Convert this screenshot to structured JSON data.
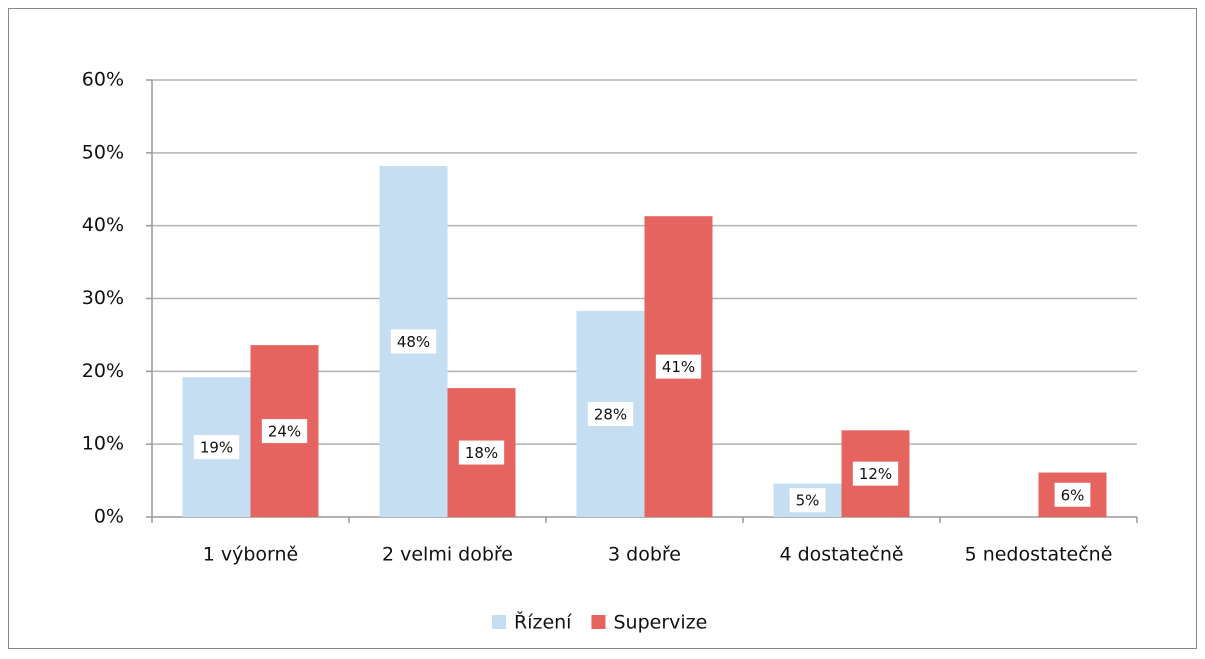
{
  "chart_data": {
    "type": "bar",
    "categories": [
      "1  výborně",
      "2  velmi dobře",
      "3  dobře",
      "4  dostatečně",
      "5  nedostatečně"
    ],
    "series": [
      {
        "name": "Řízení",
        "color": "#c6def2",
        "values": [
          19.2,
          48.2,
          28.3,
          4.6,
          null
        ],
        "value_labels": [
          "19%",
          "48%",
          "28%",
          "5%",
          null
        ]
      },
      {
        "name": "Supervize",
        "color": "#e5645f",
        "values": [
          23.6,
          17.7,
          41.3,
          11.9,
          6.1
        ],
        "value_labels": [
          "24%",
          "18%",
          "41%",
          "12%",
          "6%"
        ]
      }
    ],
    "ylim": [
      0,
      60
    ],
    "yticks": [
      {
        "value": 0,
        "label": "0%"
      },
      {
        "value": 10,
        "label": "10%"
      },
      {
        "value": 20,
        "label": "20%"
      },
      {
        "value": 30,
        "label": "30%"
      },
      {
        "value": 40,
        "label": "40%"
      },
      {
        "value": 50,
        "label": "50%"
      },
      {
        "value": 60,
        "label": "60%"
      }
    ],
    "grid": true,
    "legend": "bottom"
  }
}
